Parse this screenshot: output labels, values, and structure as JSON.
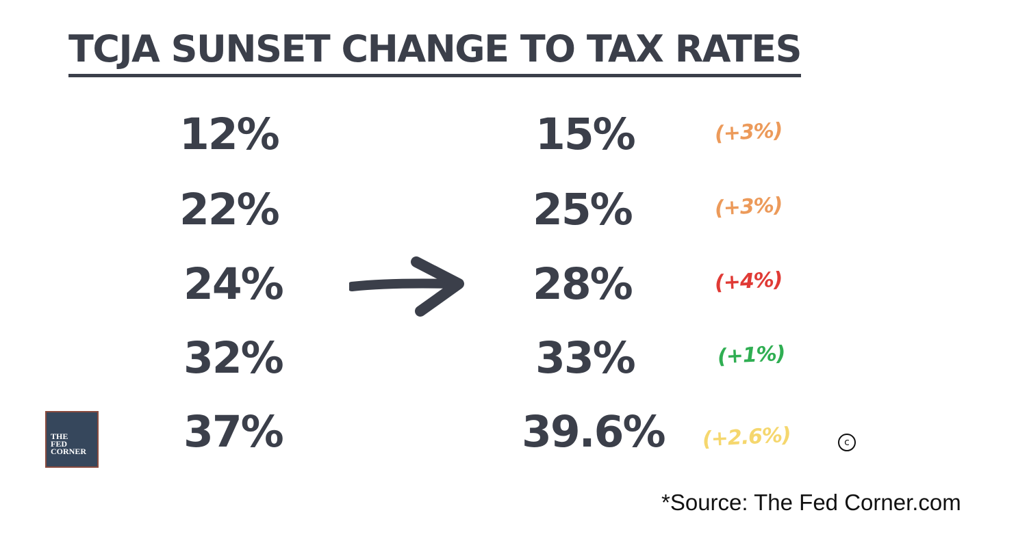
{
  "title": "TCJA SUNSET CHANGE TO TAX RATES",
  "rows": [
    {
      "old": "12%",
      "new": "15%",
      "change": "(+3%)",
      "color": "#ec9a5a"
    },
    {
      "old": "22%",
      "new": "25%",
      "change": "(+3%)",
      "color": "#ec9a5a"
    },
    {
      "old": "24%",
      "new": "28%",
      "change": "(+4%)",
      "color": "#e03a35"
    },
    {
      "old": "32%",
      "new": "33%",
      "change": "(+1%)",
      "color": "#2fae52"
    },
    {
      "old": "37%",
      "new": "39.6%",
      "change": "(+2.6%)",
      "color": "#f5d76e"
    }
  ],
  "logo": {
    "line1": "THE",
    "line2": "FED",
    "line3": "CORNER"
  },
  "copyright_symbol": "c",
  "source": "*Source: The Fed Corner.com",
  "icons": {
    "arrow": "right-arrow-icon"
  }
}
